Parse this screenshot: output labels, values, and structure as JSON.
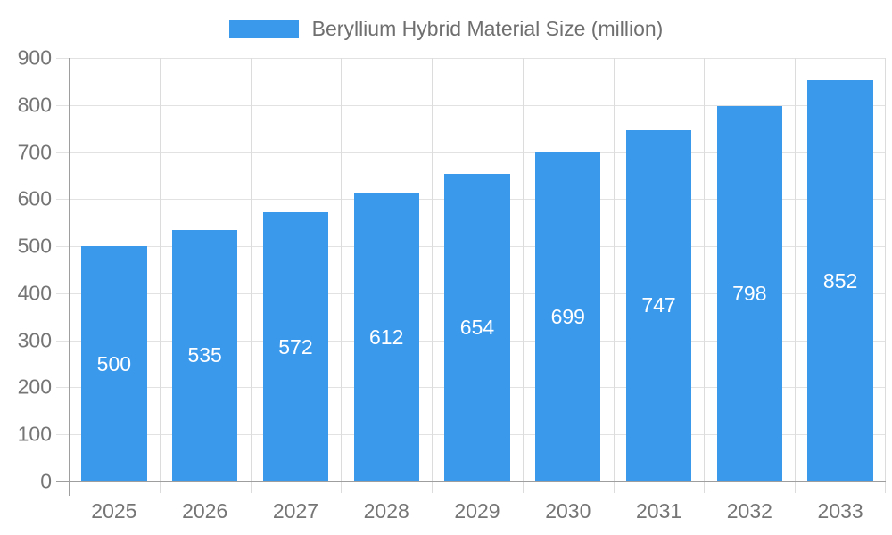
{
  "legend": {
    "label": "Beryllium Hybrid Material Size (million)"
  },
  "chart_data": {
    "type": "bar",
    "title": "Beryllium Hybrid Material Size (million)",
    "categories": [
      "2025",
      "2026",
      "2027",
      "2028",
      "2029",
      "2030",
      "2031",
      "2032",
      "2033"
    ],
    "values": [
      500,
      535,
      572,
      612,
      654,
      699,
      747,
      798,
      852
    ],
    "xlabel": "",
    "ylabel": "",
    "ylim": [
      0,
      900
    ],
    "ytick_step": 100,
    "grid": true,
    "legend_position": "top-center",
    "value_label_position": "inside-center",
    "colors": {
      "bar": "#3B99EC",
      "grid": "#E2E2E2",
      "boundary_grid": "#DCDCDC",
      "axis": "#9E9E9E",
      "tick_label": "#757575",
      "legend_text": "#6F6F6F",
      "value_label": "#FFFFFF",
      "background": "#FFFFFF"
    }
  }
}
